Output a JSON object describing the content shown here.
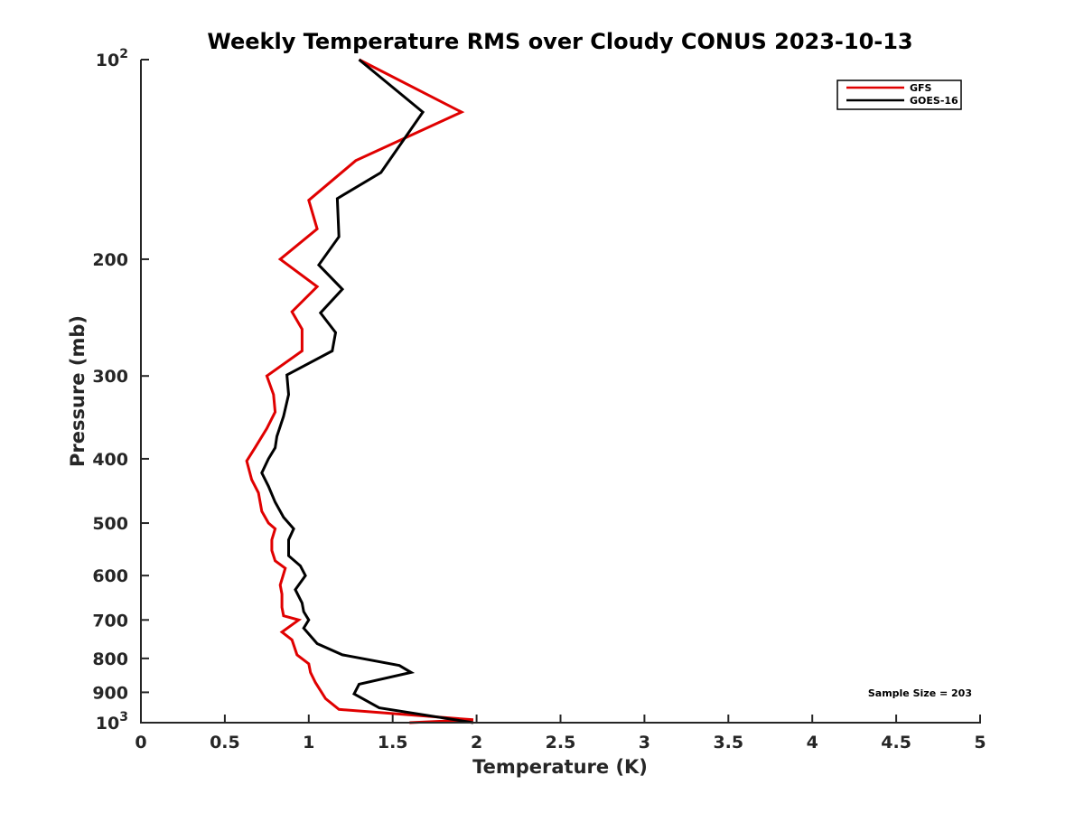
{
  "chart_data": {
    "type": "line",
    "title": "Weekly Temperature RMS over Cloudy CONUS 2023-10-13",
    "xlabel": "Temperature (K)",
    "ylabel": "Pressure (mb)",
    "xlim": [
      0,
      5
    ],
    "ylim": [
      100,
      1000
    ],
    "y_scale": "log",
    "y_reversed": true,
    "x_ticks": [
      "0",
      "0.5",
      "1",
      "1.5",
      "2",
      "2.5",
      "3",
      "3.5",
      "4",
      "4.5",
      "5"
    ],
    "y_ticks": [
      {
        "value": 100,
        "base": "10",
        "exp": "2"
      },
      {
        "value": 200,
        "label": "200"
      },
      {
        "value": 300,
        "label": "300"
      },
      {
        "value": 400,
        "label": "400"
      },
      {
        "value": 500,
        "label": "500"
      },
      {
        "value": 600,
        "label": "600"
      },
      {
        "value": 700,
        "label": "700"
      },
      {
        "value": 800,
        "label": "800"
      },
      {
        "value": 900,
        "label": "900"
      },
      {
        "value": 1000,
        "base": "10",
        "exp": "3"
      }
    ],
    "legend_position": "top-right",
    "grid": false,
    "annotation": "Sample Size = 203",
    "series": [
      {
        "name": "GFS",
        "color": "#e00000",
        "points": [
          [
            1.3,
            100
          ],
          [
            1.91,
            120
          ],
          [
            1.28,
            142
          ],
          [
            1.0,
            163
          ],
          [
            1.05,
            180
          ],
          [
            0.83,
            200
          ],
          [
            1.05,
            220
          ],
          [
            0.9,
            240
          ],
          [
            0.96,
            255
          ],
          [
            0.96,
            275
          ],
          [
            0.75,
            300
          ],
          [
            0.79,
            320
          ],
          [
            0.8,
            340
          ],
          [
            0.75,
            360
          ],
          [
            0.68,
            385
          ],
          [
            0.63,
            403
          ],
          [
            0.66,
            430
          ],
          [
            0.7,
            450
          ],
          [
            0.72,
            480
          ],
          [
            0.76,
            500
          ],
          [
            0.8,
            510
          ],
          [
            0.78,
            530
          ],
          [
            0.78,
            550
          ],
          [
            0.8,
            570
          ],
          [
            0.86,
            585
          ],
          [
            0.83,
            620
          ],
          [
            0.84,
            640
          ],
          [
            0.84,
            670
          ],
          [
            0.85,
            690
          ],
          [
            0.94,
            700
          ],
          [
            0.84,
            730
          ],
          [
            0.9,
            750
          ],
          [
            0.93,
            790
          ],
          [
            1.0,
            815
          ],
          [
            1.01,
            840
          ],
          [
            1.04,
            870
          ],
          [
            1.1,
            920
          ],
          [
            1.18,
            955
          ],
          [
            1.98,
            990
          ],
          [
            1.6,
            1000
          ]
        ]
      },
      {
        "name": "GOES-16",
        "color": "#000000",
        "points": [
          [
            1.3,
            100
          ],
          [
            1.68,
            120
          ],
          [
            1.43,
            148
          ],
          [
            1.17,
            162
          ],
          [
            1.18,
            185
          ],
          [
            1.06,
            204
          ],
          [
            1.2,
            222
          ],
          [
            1.07,
            241
          ],
          [
            1.16,
            258
          ],
          [
            1.14,
            275
          ],
          [
            0.87,
            299
          ],
          [
            0.88,
            320
          ],
          [
            0.85,
            345
          ],
          [
            0.81,
            370
          ],
          [
            0.8,
            385
          ],
          [
            0.76,
            400
          ],
          [
            0.72,
            420
          ],
          [
            0.76,
            440
          ],
          [
            0.8,
            465
          ],
          [
            0.85,
            490
          ],
          [
            0.91,
            510
          ],
          [
            0.88,
            530
          ],
          [
            0.88,
            560
          ],
          [
            0.95,
            580
          ],
          [
            0.98,
            600
          ],
          [
            0.92,
            630
          ],
          [
            0.96,
            660
          ],
          [
            0.97,
            680
          ],
          [
            1.0,
            700
          ],
          [
            0.97,
            720
          ],
          [
            1.05,
            760
          ],
          [
            1.2,
            790
          ],
          [
            1.54,
            820
          ],
          [
            1.61,
            840
          ],
          [
            1.3,
            875
          ],
          [
            1.27,
            905
          ],
          [
            1.42,
            950
          ],
          [
            1.98,
            1000
          ]
        ]
      }
    ]
  }
}
